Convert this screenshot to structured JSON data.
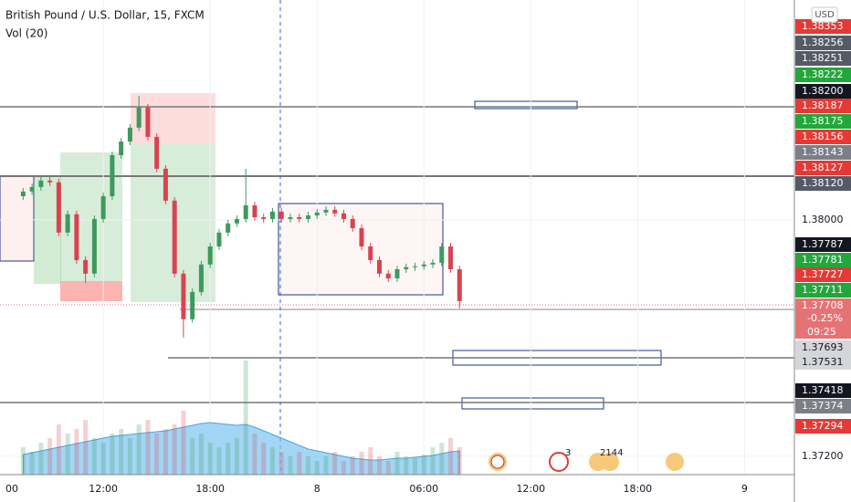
{
  "chart_data": {
    "type": "candlestick",
    "title": "British Pound / U.S. Dollar, 15, FXCM",
    "indicator": "Vol (20)",
    "currency": "USD",
    "up_color": "#3d9a5e",
    "down_color": "#d8434f",
    "x": [
      7.5,
      8,
      8.5,
      9,
      9.5,
      10,
      10.5,
      11,
      11.5,
      12,
      12.5,
      13,
      13.5,
      14,
      14.5,
      15,
      15.5,
      16,
      16.5,
      17,
      17.5,
      18,
      18.5,
      19,
      19.5,
      20,
      20.5,
      21,
      21.5,
      22,
      22.5,
      23,
      23.5,
      24,
      24.5,
      25,
      25.5,
      26,
      26.5,
      27,
      27.5,
      28,
      28.5,
      29,
      29.5,
      30,
      30.5,
      31,
      31.5,
      32
    ],
    "open": [
      1.3808,
      1.38096,
      1.38111,
      1.38133,
      1.38127,
      1.37957,
      1.38019,
      1.37864,
      1.37818,
      1.38003,
      1.3808,
      1.38219,
      1.38265,
      1.38312,
      1.3838,
      1.38281,
      1.38173,
      1.38065,
      1.37818,
      1.37664,
      1.37756,
      1.37849,
      1.3791,
      1.37957,
      1.37988,
      1.38003,
      1.38049,
      1.38009,
      1.38003,
      1.38028,
      1.38003,
      1.38009,
      1.38003,
      1.38015,
      1.38025,
      1.38034,
      1.38022,
      1.38003,
      1.37972,
      1.3791,
      1.37864,
      1.37818,
      1.37802,
      1.37833,
      1.3784,
      1.37843,
      1.37849,
      1.37855,
      1.3791,
      1.37833
    ],
    "high": [
      1.38108,
      1.38123,
      1.38145,
      1.38145,
      1.38139,
      1.38031,
      1.38031,
      1.37876,
      1.38015,
      1.38092,
      1.38231,
      1.38277,
      1.38324,
      1.3842,
      1.38392,
      1.38293,
      1.38185,
      1.38077,
      1.3783,
      1.37768,
      1.37861,
      1.37922,
      1.37969,
      1.38,
      1.38015,
      1.38173,
      1.38061,
      1.38021,
      1.3804,
      1.3804,
      1.38021,
      1.38021,
      1.38027,
      1.38037,
      1.38046,
      1.38046,
      1.38034,
      1.38015,
      1.37984,
      1.37922,
      1.37876,
      1.3783,
      1.37845,
      1.37852,
      1.37855,
      1.37861,
      1.37867,
      1.37922,
      1.37922,
      1.37845
    ],
    "low": [
      1.38068,
      1.38084,
      1.38099,
      1.38115,
      1.37945,
      1.37945,
      1.37852,
      1.37787,
      1.37806,
      1.37991,
      1.38068,
      1.38207,
      1.38253,
      1.383,
      1.38269,
      1.38161,
      1.38053,
      1.37806,
      1.37602,
      1.37652,
      1.37744,
      1.37837,
      1.37898,
      1.37945,
      1.37976,
      1.37991,
      1.37997,
      1.37991,
      1.37991,
      1.37991,
      1.37991,
      1.37991,
      1.37991,
      1.38003,
      1.38013,
      1.3801,
      1.37991,
      1.3796,
      1.37898,
      1.37852,
      1.37806,
      1.3779,
      1.3779,
      1.37821,
      1.37828,
      1.37831,
      1.37837,
      1.37843,
      1.37821,
      1.37701
    ],
    "close": [
      1.38096,
      1.38111,
      1.38133,
      1.38127,
      1.37957,
      1.38019,
      1.37864,
      1.37818,
      1.38003,
      1.3808,
      1.38219,
      1.38265,
      1.38312,
      1.3838,
      1.38281,
      1.38173,
      1.38065,
      1.37818,
      1.37664,
      1.37756,
      1.37849,
      1.3791,
      1.37957,
      1.37988,
      1.38003,
      1.38049,
      1.38009,
      1.38003,
      1.38028,
      1.38003,
      1.38009,
      1.38003,
      1.38015,
      1.38025,
      1.38034,
      1.38022,
      1.38003,
      1.37972,
      1.3791,
      1.37864,
      1.37818,
      1.37802,
      1.37833,
      1.3784,
      1.37843,
      1.37849,
      1.37855,
      1.3791,
      1.37833,
      1.37725
    ],
    "volume": [
      30,
      25,
      35,
      40,
      55,
      45,
      50,
      60,
      40,
      35,
      45,
      50,
      40,
      55,
      60,
      45,
      50,
      55,
      70,
      40,
      45,
      35,
      30,
      35,
      40,
      125,
      45,
      35,
      30,
      25,
      20,
      25,
      20,
      15,
      20,
      25,
      15,
      20,
      25,
      30,
      20,
      15,
      25,
      20,
      18,
      22,
      30,
      35,
      40,
      30
    ],
    "volume_ma": [
      22,
      24,
      26,
      28,
      30,
      32,
      34,
      36,
      38,
      40,
      42,
      43,
      44,
      45,
      46,
      47,
      48,
      50,
      52,
      54,
      56,
      57,
      56,
      55,
      54,
      55,
      52,
      48,
      44,
      40,
      36,
      32,
      28,
      26,
      24,
      22,
      20,
      18,
      17,
      16,
      16,
      17,
      18,
      18,
      19,
      20,
      21,
      23,
      25,
      26
    ],
    "volume_ma_color": "#7cc4f0",
    "ylim": [
      1.37138,
      1.38744
    ],
    "yticks": [
      {
        "value": 1.38,
        "label": "1.38000"
      },
      {
        "value": 1.372,
        "label": "1.37200"
      }
    ],
    "xlim": [
      6.2,
      50.8
    ],
    "xticks": [
      {
        "value": 6,
        "label": "00"
      },
      {
        "value": 12,
        "label": "12:00"
      },
      {
        "value": 18,
        "label": "18:00"
      },
      {
        "value": 24,
        "label": "8"
      },
      {
        "value": 30,
        "label": "06:00"
      },
      {
        "value": 36,
        "label": "12:00"
      },
      {
        "value": 42,
        "label": "18:00"
      },
      {
        "value": 48,
        "label": "9"
      }
    ],
    "grid": true,
    "price_tags": [
      {
        "value": 1.38353,
        "label": "1.38353",
        "color": "#e53935"
      },
      {
        "value": 1.38256,
        "label": "1.38256",
        "color": "#555a66"
      },
      {
        "value": 1.38251,
        "label": "1.38251",
        "color": "#555a66"
      },
      {
        "value": 1.38222,
        "label": "1.38222",
        "color": "#23a63a"
      },
      {
        "value": 1.382,
        "label": "1.38200",
        "color": "#131722"
      },
      {
        "value": 1.38187,
        "label": "1.38187",
        "color": "#e53935"
      },
      {
        "value": 1.38175,
        "label": "1.38175",
        "color": "#23a63a"
      },
      {
        "value": 1.38156,
        "label": "1.38156",
        "color": "#e53935"
      },
      {
        "value": 1.38143,
        "label": "1.38143",
        "color": "#7b7f88"
      },
      {
        "value": 1.38127,
        "label": "1.38127",
        "color": "#e53935"
      },
      {
        "value": 1.3812,
        "label": "1.38120",
        "color": "#555a66"
      },
      {
        "value": 1.37787,
        "label": "1.37787",
        "color": "#131722"
      },
      {
        "value": 1.37781,
        "label": "1.37781",
        "color": "#23a63a"
      },
      {
        "value": 1.37727,
        "label": "1.37727",
        "color": "#e53935"
      },
      {
        "value": 1.37711,
        "label": "1.37711",
        "color": "#23a63a"
      },
      {
        "value": 1.37708,
        "label": "1.37708",
        "color": "#e57373"
      },
      {
        "value": 1.37693,
        "label": "1.37693",
        "color": "#d5d6d9"
      },
      {
        "value": 1.37531,
        "label": "1.37531",
        "color": "#d5d6d9"
      },
      {
        "value": 1.37418,
        "label": "1.37418",
        "color": "#131722"
      },
      {
        "value": 1.37374,
        "label": "1.37374",
        "color": "#7b7f88"
      },
      {
        "value": 1.37294,
        "label": "1.37294",
        "color": "#e53935"
      }
    ],
    "change": "-0.25%",
    "countdown": "09:25",
    "event_counts": [
      "3",
      "2144"
    ]
  }
}
